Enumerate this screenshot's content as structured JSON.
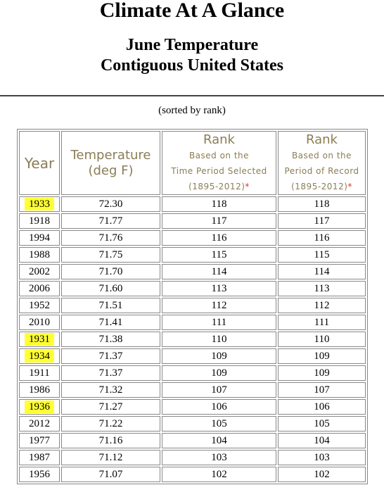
{
  "header": {
    "title": "Climate At A Glance",
    "subtitle_lines": [
      "June Temperature",
      "Contiguous United States"
    ]
  },
  "note": "(sorted by rank)",
  "table": {
    "columns": [
      {
        "title": "Year"
      },
      {
        "title_lines": [
          "Temperature",
          "(deg F)"
        ]
      },
      {
        "title": "Rank",
        "sub_lines": [
          "Based on the",
          "Time Period Selected"
        ],
        "period": "(1895-2012)",
        "footnote_mark": "*"
      },
      {
        "title": "Rank",
        "sub_lines": [
          "Based on the",
          "Period of Record"
        ],
        "period": "(1895-2012)",
        "footnote_mark": "*"
      }
    ],
    "rows": [
      {
        "year": "1933",
        "temperature": "72.30",
        "rank_period": "118",
        "rank_record": "118",
        "highlight": true
      },
      {
        "year": "1918",
        "temperature": "71.77",
        "rank_period": "117",
        "rank_record": "117",
        "highlight": false
      },
      {
        "year": "1994",
        "temperature": "71.76",
        "rank_period": "116",
        "rank_record": "116",
        "highlight": false
      },
      {
        "year": "1988",
        "temperature": "71.75",
        "rank_period": "115",
        "rank_record": "115",
        "highlight": false
      },
      {
        "year": "2002",
        "temperature": "71.70",
        "rank_period": "114",
        "rank_record": "114",
        "highlight": false
      },
      {
        "year": "2006",
        "temperature": "71.60",
        "rank_period": "113",
        "rank_record": "113",
        "highlight": false
      },
      {
        "year": "1952",
        "temperature": "71.51",
        "rank_period": "112",
        "rank_record": "112",
        "highlight": false
      },
      {
        "year": "2010",
        "temperature": "71.41",
        "rank_period": "111",
        "rank_record": "111",
        "highlight": false
      },
      {
        "year": "1931",
        "temperature": "71.38",
        "rank_period": "110",
        "rank_record": "110",
        "highlight": true
      },
      {
        "year": "1934",
        "temperature": "71.37",
        "rank_period": "109",
        "rank_record": "109",
        "highlight": true
      },
      {
        "year": "1911",
        "temperature": "71.37",
        "rank_period": "109",
        "rank_record": "109",
        "highlight": false
      },
      {
        "year": "1986",
        "temperature": "71.32",
        "rank_period": "107",
        "rank_record": "107",
        "highlight": false
      },
      {
        "year": "1936",
        "temperature": "71.27",
        "rank_period": "106",
        "rank_record": "106",
        "highlight": true
      },
      {
        "year": "2012",
        "temperature": "71.22",
        "rank_period": "105",
        "rank_record": "105",
        "highlight": false
      },
      {
        "year": "1977",
        "temperature": "71.16",
        "rank_period": "104",
        "rank_record": "104",
        "highlight": false
      },
      {
        "year": "1987",
        "temperature": "71.12",
        "rank_period": "103",
        "rank_record": "103",
        "highlight": false
      },
      {
        "year": "1956",
        "temperature": "71.07",
        "rank_period": "102",
        "rank_record": "102",
        "highlight": false
      }
    ]
  }
}
